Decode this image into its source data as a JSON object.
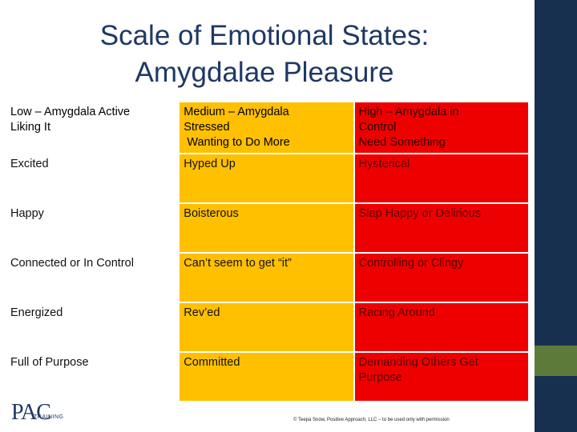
{
  "title": {
    "line1": "Scale of Emotional States:",
    "line2": "Amygdalae Pleasure"
  },
  "table": {
    "headers": [
      {
        "lines": [
          "Low – Amygdala  Active",
          "Liking It"
        ]
      },
      {
        "lines": [
          "Medium – Amygdala",
          "Stressed",
          " Wanting to Do More"
        ]
      },
      {
        "lines": [
          "High – Amygdala  in",
          "Control",
          "Need Something"
        ]
      }
    ],
    "rows": [
      [
        "Excited",
        "Hyped Up",
        "Hysterical"
      ],
      [
        "Happy",
        "Boisterous",
        "Slap Happy or Delirious"
      ],
      [
        "Connected or In Control",
        "Can’t seem to get “it”",
        "Controlling or Clingy"
      ],
      [
        "Energized",
        "Rev’ed",
        "Racing Around"
      ],
      [
        "Full of Purpose",
        "Committed",
        "Demanding Others Get Purpose"
      ]
    ]
  },
  "logo": {
    "pac": "PAC",
    "training": "TRAINING"
  },
  "footer": {
    "copyright": "© Teepa Snow, Positive Approach, LLC – to be used only with permission"
  },
  "colors": {
    "low": "#ffffff",
    "medium": "#ffc000",
    "high": "#ee0000",
    "sidebar": "#17304f",
    "accent": "#5e7a3a"
  }
}
